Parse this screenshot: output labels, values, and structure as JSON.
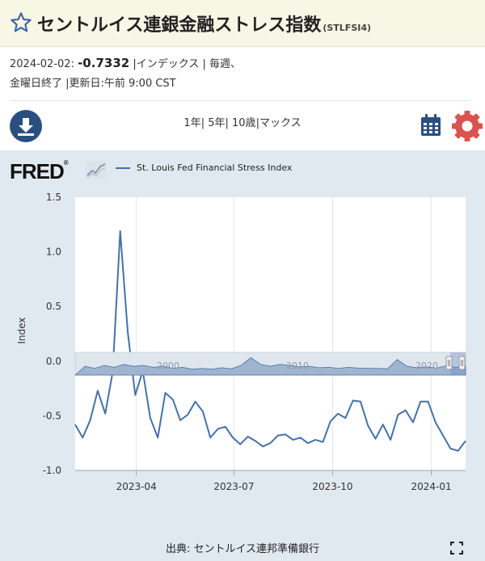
{
  "header": {
    "title": "セントルイス連銀金融ストレス指数",
    "series_id": "(STLFSI4)"
  },
  "meta": {
    "date": "2024-02-02:",
    "value": "-0.7332",
    "line1_rest": " |インデックス | 毎週、",
    "line2": "金曜日終了 |更新日:午前 9:00 CST"
  },
  "toolbar": {
    "ranges": [
      "1年",
      "5年",
      "10歳",
      "マックス"
    ],
    "download_icon": "download-icon",
    "calendar_icon": "calendar-icon",
    "settings_icon": "gear-icon",
    "accent": "#2a4f7f",
    "gear_color": "#d9534f"
  },
  "legend": {
    "series_name": "St. Louis Fed Financial Stress Index",
    "color": "#4572a7"
  },
  "chart_data": {
    "type": "line",
    "ylabel": "Index",
    "ylim": [
      -1.0,
      1.5
    ],
    "yticks": [
      1.5,
      1.0,
      0.5,
      0.0,
      -0.5,
      -1.0
    ],
    "ytick_labels": [
      "1.5",
      "1.0",
      "0.5",
      "0.0",
      "-0.5",
      "-1.0"
    ],
    "xlim": [
      "2023-02-03",
      "2024-02-02"
    ],
    "xticks": [
      "2023-04-01",
      "2023-07-01",
      "2023-10-01",
      "2024-01-01"
    ],
    "xtick_labels": [
      "2023-04",
      "2023-07",
      "2023-10",
      "2024-01"
    ],
    "zero_line": 0.0,
    "grid": "vertical",
    "series": [
      {
        "name": "St. Louis Fed Financial Stress Index",
        "color": "#4572a7",
        "x": [
          "2023-02-03",
          "2023-02-10",
          "2023-02-17",
          "2023-02-24",
          "2023-03-03",
          "2023-03-10",
          "2023-03-17",
          "2023-03-24",
          "2023-03-31",
          "2023-04-07",
          "2023-04-14",
          "2023-04-21",
          "2023-04-28",
          "2023-05-05",
          "2023-05-12",
          "2023-05-19",
          "2023-05-26",
          "2023-06-02",
          "2023-06-09",
          "2023-06-16",
          "2023-06-23",
          "2023-06-30",
          "2023-07-07",
          "2023-07-14",
          "2023-07-21",
          "2023-07-28",
          "2023-08-04",
          "2023-08-11",
          "2023-08-18",
          "2023-08-25",
          "2023-09-01",
          "2023-09-08",
          "2023-09-15",
          "2023-09-22",
          "2023-09-29",
          "2023-10-06",
          "2023-10-13",
          "2023-10-20",
          "2023-10-27",
          "2023-11-03",
          "2023-11-10",
          "2023-11-17",
          "2023-11-24",
          "2023-12-01",
          "2023-12-08",
          "2023-12-15",
          "2023-12-22",
          "2023-12-29",
          "2024-01-05",
          "2024-01-12",
          "2024-01-19",
          "2024-01-26",
          "2024-02-02"
        ],
        "values": [
          -0.58,
          -0.7,
          -0.54,
          -0.27,
          -0.48,
          -0.1,
          1.19,
          0.27,
          -0.31,
          -0.09,
          -0.52,
          -0.7,
          -0.29,
          -0.35,
          -0.54,
          -0.49,
          -0.37,
          -0.46,
          -0.7,
          -0.62,
          -0.6,
          -0.7,
          -0.76,
          -0.69,
          -0.73,
          -0.78,
          -0.75,
          -0.68,
          -0.67,
          -0.72,
          -0.7,
          -0.75,
          -0.72,
          -0.74,
          -0.55,
          -0.48,
          -0.52,
          -0.36,
          -0.37,
          -0.59,
          -0.71,
          -0.58,
          -0.72,
          -0.49,
          -0.45,
          -0.56,
          -0.37,
          -0.37,
          -0.56,
          -0.68,
          -0.8,
          -0.82,
          -0.73
        ]
      }
    ],
    "navigator": {
      "labels": [
        "2000",
        "2010",
        "2020"
      ]
    }
  },
  "footer": {
    "source": "出典: セントルイス連邦準備銀行",
    "fullscreen_icon": "fullscreen-icon"
  }
}
